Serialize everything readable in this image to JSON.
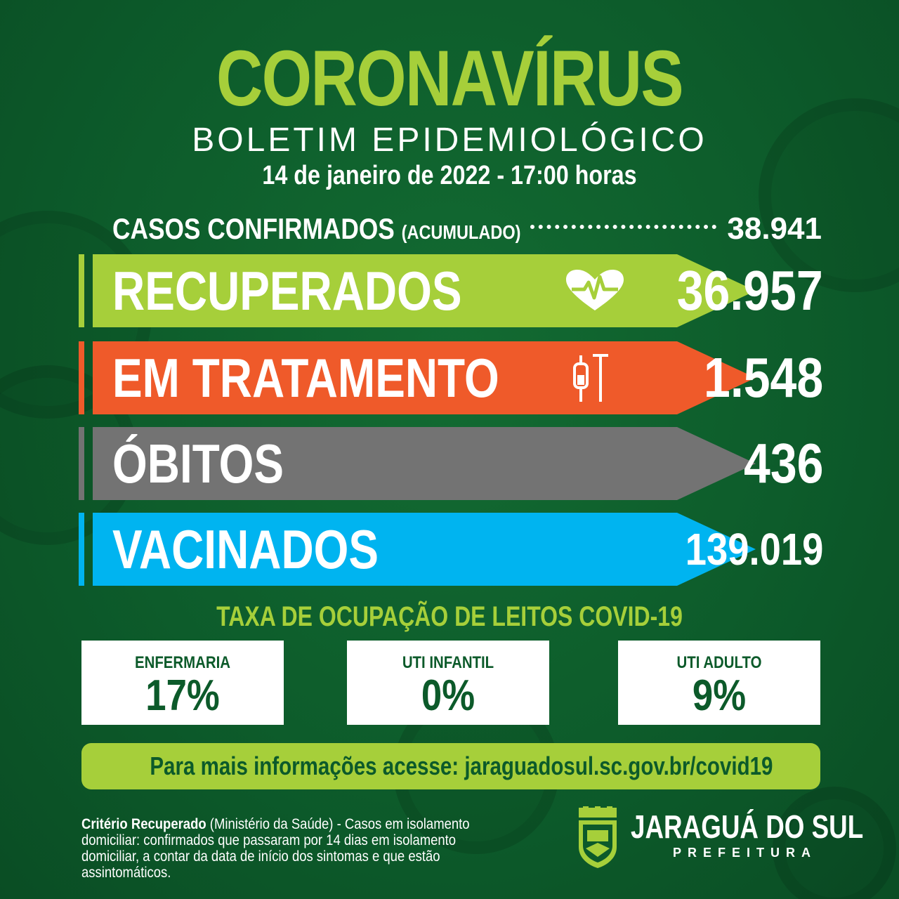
{
  "header": {
    "title": "CORONAVÍRUS",
    "subtitle": "BOLETIM EPIDEMIOLÓGICO",
    "date": "14 de janeiro de 2022 - 17:00 horas"
  },
  "confirmed": {
    "label": "CASOS CONFIRMADOS",
    "qualifier": "(ACUMULADO)",
    "value": "38.941"
  },
  "stats": [
    {
      "label": "RECUPERADOS",
      "value": "36.957",
      "color": "#a6cf3a",
      "icon": "heart-pulse-icon"
    },
    {
      "label": "EM TRATAMENTO",
      "value": "1.548",
      "color": "#ef5a2a",
      "icon": "iv-drip-icon"
    },
    {
      "label": "ÓBITOS",
      "value": "436",
      "color": "#737373",
      "icon": ""
    },
    {
      "label": "VACINADOS",
      "value": "139.019",
      "color": "#00b4f0",
      "icon": ""
    }
  ],
  "occupancy": {
    "title": "TAXA DE OCUPAÇÃO DE LEITOS COVID-19",
    "boxes": [
      {
        "label": "ENFERMARIA",
        "value": "17%"
      },
      {
        "label": "UTI INFANTIL",
        "value": "0%"
      },
      {
        "label": "UTI ADULTO",
        "value": "9%"
      }
    ]
  },
  "info": "Para mais informações acesse: jaraguadosul.sc.gov.br/covid19",
  "footnote": {
    "bold": "Critério Recuperado",
    "text": " (Ministério da Saúde) - Casos em isolamento domiciliar: confirmados que passaram por 14 dias em isolamento domiciliar, a contar da data de início dos sintomas e que estão assintomáticos."
  },
  "logo": {
    "name": "JARAGUÁ DO SUL",
    "subtitle": "PREFEITURA"
  },
  "colors": {
    "background": "#0c5a2a",
    "accent_green": "#a6cf3a"
  }
}
